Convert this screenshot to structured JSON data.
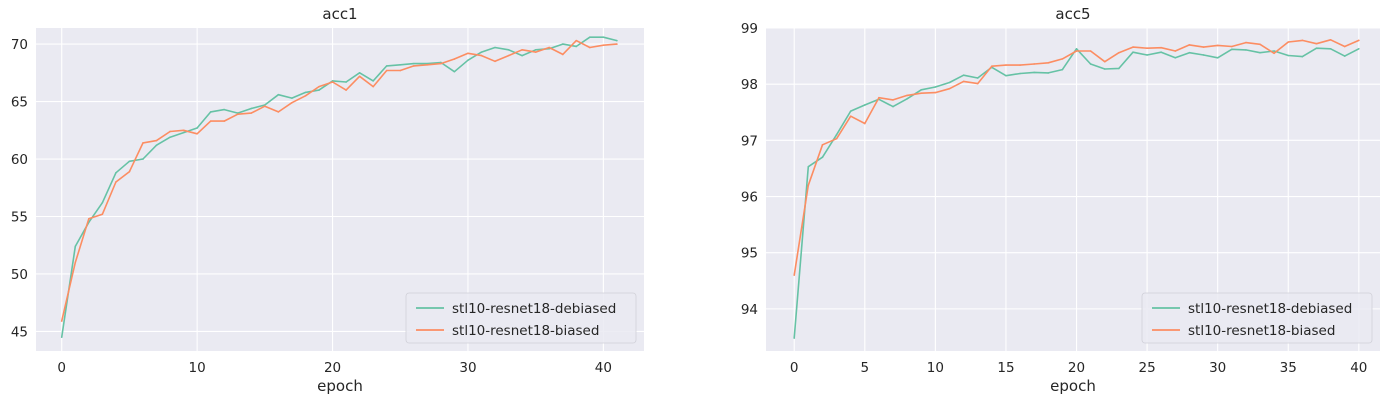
{
  "chart_data": [
    {
      "type": "line",
      "title": "acc1",
      "xlabel": "epoch",
      "ylabel": "",
      "xlim": [
        -1.9,
        43.0
      ],
      "ylim": [
        43.3,
        71.4
      ],
      "xticks": [
        0,
        10,
        20,
        30,
        40
      ],
      "yticks": [
        45,
        50,
        55,
        60,
        65,
        70
      ],
      "grid": true,
      "legend_position": "lower-right",
      "series": [
        {
          "name": "stl10-resnet18-debiased",
          "color": "#66c2a5",
          "x": [
            0,
            1,
            2,
            3,
            4,
            5,
            6,
            7,
            8,
            9,
            10,
            11,
            12,
            13,
            14,
            15,
            16,
            17,
            18,
            19,
            20,
            21,
            22,
            23,
            24,
            25,
            26,
            27,
            28,
            29,
            30,
            31,
            32,
            33,
            34,
            35,
            36,
            37,
            38,
            39,
            40,
            41
          ],
          "y": [
            44.5,
            52.4,
            54.5,
            56.2,
            58.8,
            59.8,
            60.0,
            61.2,
            61.9,
            62.3,
            62.7,
            64.1,
            64.3,
            64.0,
            64.4,
            64.7,
            65.6,
            65.3,
            65.8,
            66.0,
            66.8,
            66.7,
            67.5,
            66.8,
            68.1,
            68.2,
            68.3,
            68.3,
            68.4,
            67.6,
            68.6,
            69.3,
            69.7,
            69.5,
            69.0,
            69.5,
            69.6,
            70.0,
            69.8,
            70.6,
            70.6,
            70.3
          ]
        },
        {
          "name": "stl10-resnet18-biased",
          "color": "#fc8d62",
          "x": [
            0,
            1,
            2,
            3,
            4,
            5,
            6,
            7,
            8,
            9,
            10,
            11,
            12,
            13,
            14,
            15,
            16,
            17,
            18,
            19,
            20,
            21,
            22,
            23,
            24,
            25,
            26,
            27,
            28,
            29,
            30,
            31,
            32,
            33,
            34,
            35,
            36,
            37,
            38,
            39,
            40,
            41
          ],
          "y": [
            45.9,
            51.0,
            54.8,
            55.2,
            58.0,
            58.9,
            61.4,
            61.6,
            62.4,
            62.5,
            62.2,
            63.3,
            63.3,
            63.9,
            64.0,
            64.6,
            64.1,
            64.9,
            65.5,
            66.3,
            66.7,
            66.0,
            67.2,
            66.3,
            67.7,
            67.7,
            68.1,
            68.2,
            68.3,
            68.7,
            69.2,
            69.0,
            68.5,
            69.0,
            69.5,
            69.3,
            69.7,
            69.1,
            70.3,
            69.7,
            69.9,
            70.0
          ]
        }
      ]
    },
    {
      "type": "line",
      "title": "acc5",
      "xlabel": "epoch",
      "ylabel": "",
      "xlim": [
        -2.0,
        41.5
      ],
      "ylim": [
        93.25,
        99.0
      ],
      "xticks": [
        0,
        5,
        10,
        15,
        20,
        25,
        30,
        35,
        40
      ],
      "yticks": [
        94,
        95,
        96,
        97,
        98,
        99
      ],
      "grid": true,
      "legend_position": "lower-right",
      "series": [
        {
          "name": "stl10-resnet18-debiased",
          "color": "#66c2a5",
          "x": [
            0,
            1,
            2,
            3,
            4,
            5,
            6,
            7,
            8,
            9,
            10,
            11,
            12,
            13,
            14,
            15,
            16,
            17,
            18,
            19,
            20,
            21,
            22,
            23,
            24,
            25,
            26,
            27,
            28,
            29,
            30,
            31,
            32,
            33,
            34,
            35,
            36,
            37,
            38,
            39,
            40
          ],
          "y": [
            93.48,
            96.53,
            96.7,
            97.1,
            97.52,
            97.63,
            97.73,
            97.6,
            97.74,
            97.9,
            97.95,
            98.03,
            98.16,
            98.11,
            98.3,
            98.15,
            98.19,
            98.21,
            98.2,
            98.26,
            98.63,
            98.36,
            98.27,
            98.28,
            98.57,
            98.52,
            98.57,
            98.47,
            98.56,
            98.52,
            98.47,
            98.62,
            98.61,
            98.56,
            98.59,
            98.51,
            98.49,
            98.64,
            98.63,
            98.5,
            98.63
          ]
        },
        {
          "name": "stl10-resnet18-biased",
          "color": "#fc8d62",
          "x": [
            0,
            1,
            2,
            3,
            4,
            5,
            6,
            7,
            8,
            9,
            10,
            11,
            12,
            13,
            14,
            15,
            16,
            17,
            18,
            19,
            20,
            21,
            22,
            23,
            24,
            25,
            26,
            27,
            28,
            29,
            30,
            31,
            32,
            33,
            34,
            35,
            36,
            37,
            38,
            39,
            40
          ],
          "y": [
            94.6,
            96.2,
            96.92,
            97.03,
            97.43,
            97.3,
            97.76,
            97.72,
            97.8,
            97.84,
            97.85,
            97.92,
            98.05,
            98.01,
            98.32,
            98.34,
            98.34,
            98.36,
            98.38,
            98.45,
            98.59,
            98.59,
            98.4,
            98.56,
            98.66,
            98.64,
            98.65,
            98.59,
            98.7,
            98.66,
            98.69,
            98.67,
            98.74,
            98.71,
            98.55,
            98.75,
            98.78,
            98.72,
            98.79,
            98.67,
            98.78
          ]
        }
      ]
    }
  ]
}
